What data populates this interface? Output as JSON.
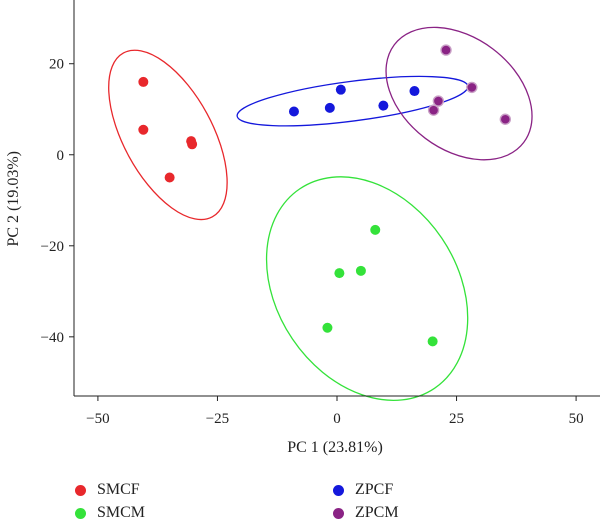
{
  "chart_data": {
    "type": "scatter",
    "title": "",
    "xlabel": "PC 1 (23.81%)",
    "ylabel": "PC 2 (19.03%)",
    "xlim": [
      -55,
      55
    ],
    "ylim": [
      -53,
      34
    ],
    "xticks": [
      -50,
      -25,
      0,
      25,
      50
    ],
    "yticks": [
      -40,
      -20,
      0,
      20
    ],
    "xtick_labels": [
      "−50",
      "−25",
      "0",
      "25",
      "50"
    ],
    "ytick_labels": [
      "−40",
      "−20",
      "0",
      "20"
    ],
    "grid": false,
    "legend_position": "bottom",
    "series": [
      {
        "name": "SMCF",
        "color": "#e8282c",
        "ellipse": true,
        "points": [
          [
            -40.5,
            16.0
          ],
          [
            -40.5,
            5.5
          ],
          [
            -35.0,
            -5.0
          ],
          [
            -30.5,
            3.0
          ],
          [
            -30.3,
            2.3
          ]
        ]
      },
      {
        "name": "SMCM",
        "color": "#34e23a",
        "ellipse": true,
        "points": [
          [
            8.0,
            -16.5
          ],
          [
            0.5,
            -26.0
          ],
          [
            5.0,
            -25.5
          ],
          [
            -2.0,
            -38.0
          ],
          [
            20.0,
            -41.0
          ]
        ]
      },
      {
        "name": "ZPCF",
        "color": "#1418dc",
        "ellipse": true,
        "points": [
          [
            -9.0,
            9.5
          ],
          [
            -1.5,
            10.3
          ],
          [
            0.8,
            14.3
          ],
          [
            9.7,
            10.8
          ],
          [
            16.2,
            14.0
          ]
        ]
      },
      {
        "name": "ZPCM",
        "color": "#8a2385",
        "ellipse": true,
        "points": [
          [
            22.8,
            23.0
          ],
          [
            28.2,
            14.8
          ],
          [
            21.2,
            11.8
          ],
          [
            20.2,
            9.8
          ],
          [
            35.2,
            7.8
          ]
        ]
      }
    ]
  }
}
